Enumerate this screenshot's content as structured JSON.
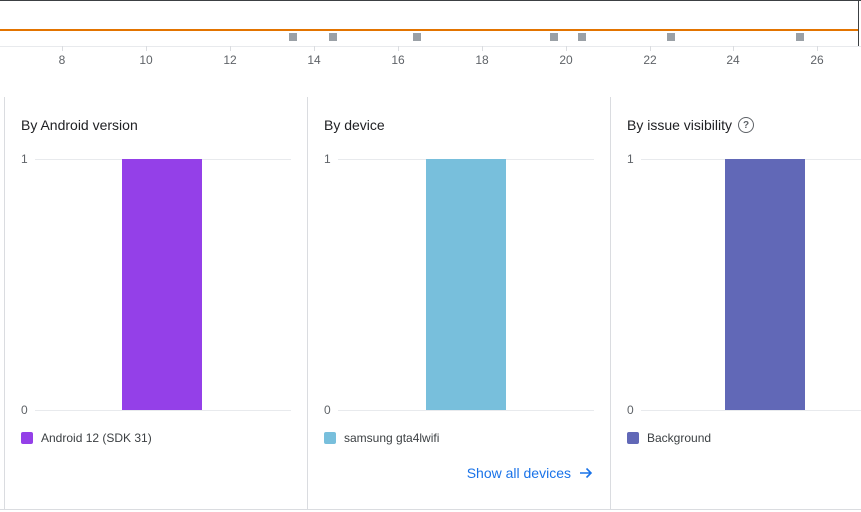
{
  "timeline": {
    "tick_labels": [
      "8",
      "10",
      "12",
      "14",
      "16",
      "18",
      "20",
      "22",
      "24",
      "26"
    ]
  },
  "cards": [
    {
      "title": "By Android version",
      "y_max_label": "1",
      "y_min_label": "0",
      "legend": "Android 12 (SDK 31)",
      "color": "#9440e8"
    },
    {
      "title": "By device",
      "y_max_label": "1",
      "y_min_label": "0",
      "legend": "samsung gta4lwifi",
      "color": "#78bfdc",
      "link": "Show all devices"
    },
    {
      "title": "By issue visibility",
      "help_icon": "?",
      "y_max_label": "1",
      "y_min_label": "0",
      "legend": "Background",
      "color": "#6168b7"
    }
  ],
  "chart_data": [
    {
      "type": "bar",
      "categories": [
        "Android 12 (SDK 31)"
      ],
      "values": [
        1
      ],
      "ylim": [
        0,
        1
      ],
      "title": "By Android version"
    },
    {
      "type": "bar",
      "categories": [
        "samsung gta4lwifi"
      ],
      "values": [
        1
      ],
      "ylim": [
        0,
        1
      ],
      "title": "By device"
    },
    {
      "type": "bar",
      "categories": [
        "Background"
      ],
      "values": [
        1
      ],
      "ylim": [
        0,
        1
      ],
      "title": "By issue visibility"
    }
  ]
}
